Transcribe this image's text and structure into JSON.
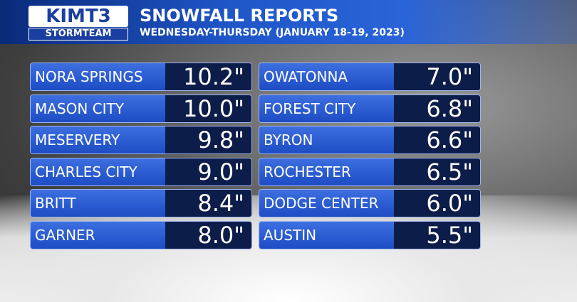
{
  "header": {
    "logo": "KIMT3",
    "logo_sub": "STORMTEAM",
    "title": "SNOWFALL REPORTS",
    "subtitle": "WEDNESDAY-THURSDAY (JANUARY 18-19, 2023)"
  },
  "table": {
    "columns": [
      {
        "rows": [
          [
            "NORA SPRINGS",
            "10.2\""
          ],
          [
            "MASON CITY",
            "10.0\""
          ],
          [
            "MESERVERY",
            "9.8\""
          ],
          [
            "CHARLES CITY",
            "9.0\""
          ],
          [
            "BRITT",
            "8.4\""
          ],
          [
            "GARNER",
            "8.0\""
          ]
        ]
      },
      {
        "rows": [
          [
            "OWATONNA",
            "7.0\""
          ],
          [
            "FOREST CITY",
            "6.8\""
          ],
          [
            "BYRON",
            "6.6\""
          ],
          [
            "ROCHESTER",
            "6.5\""
          ],
          [
            "DODGE CENTER",
            "6.0\""
          ],
          [
            "AUSTIN",
            "5.5\""
          ]
        ]
      }
    ]
  }
}
